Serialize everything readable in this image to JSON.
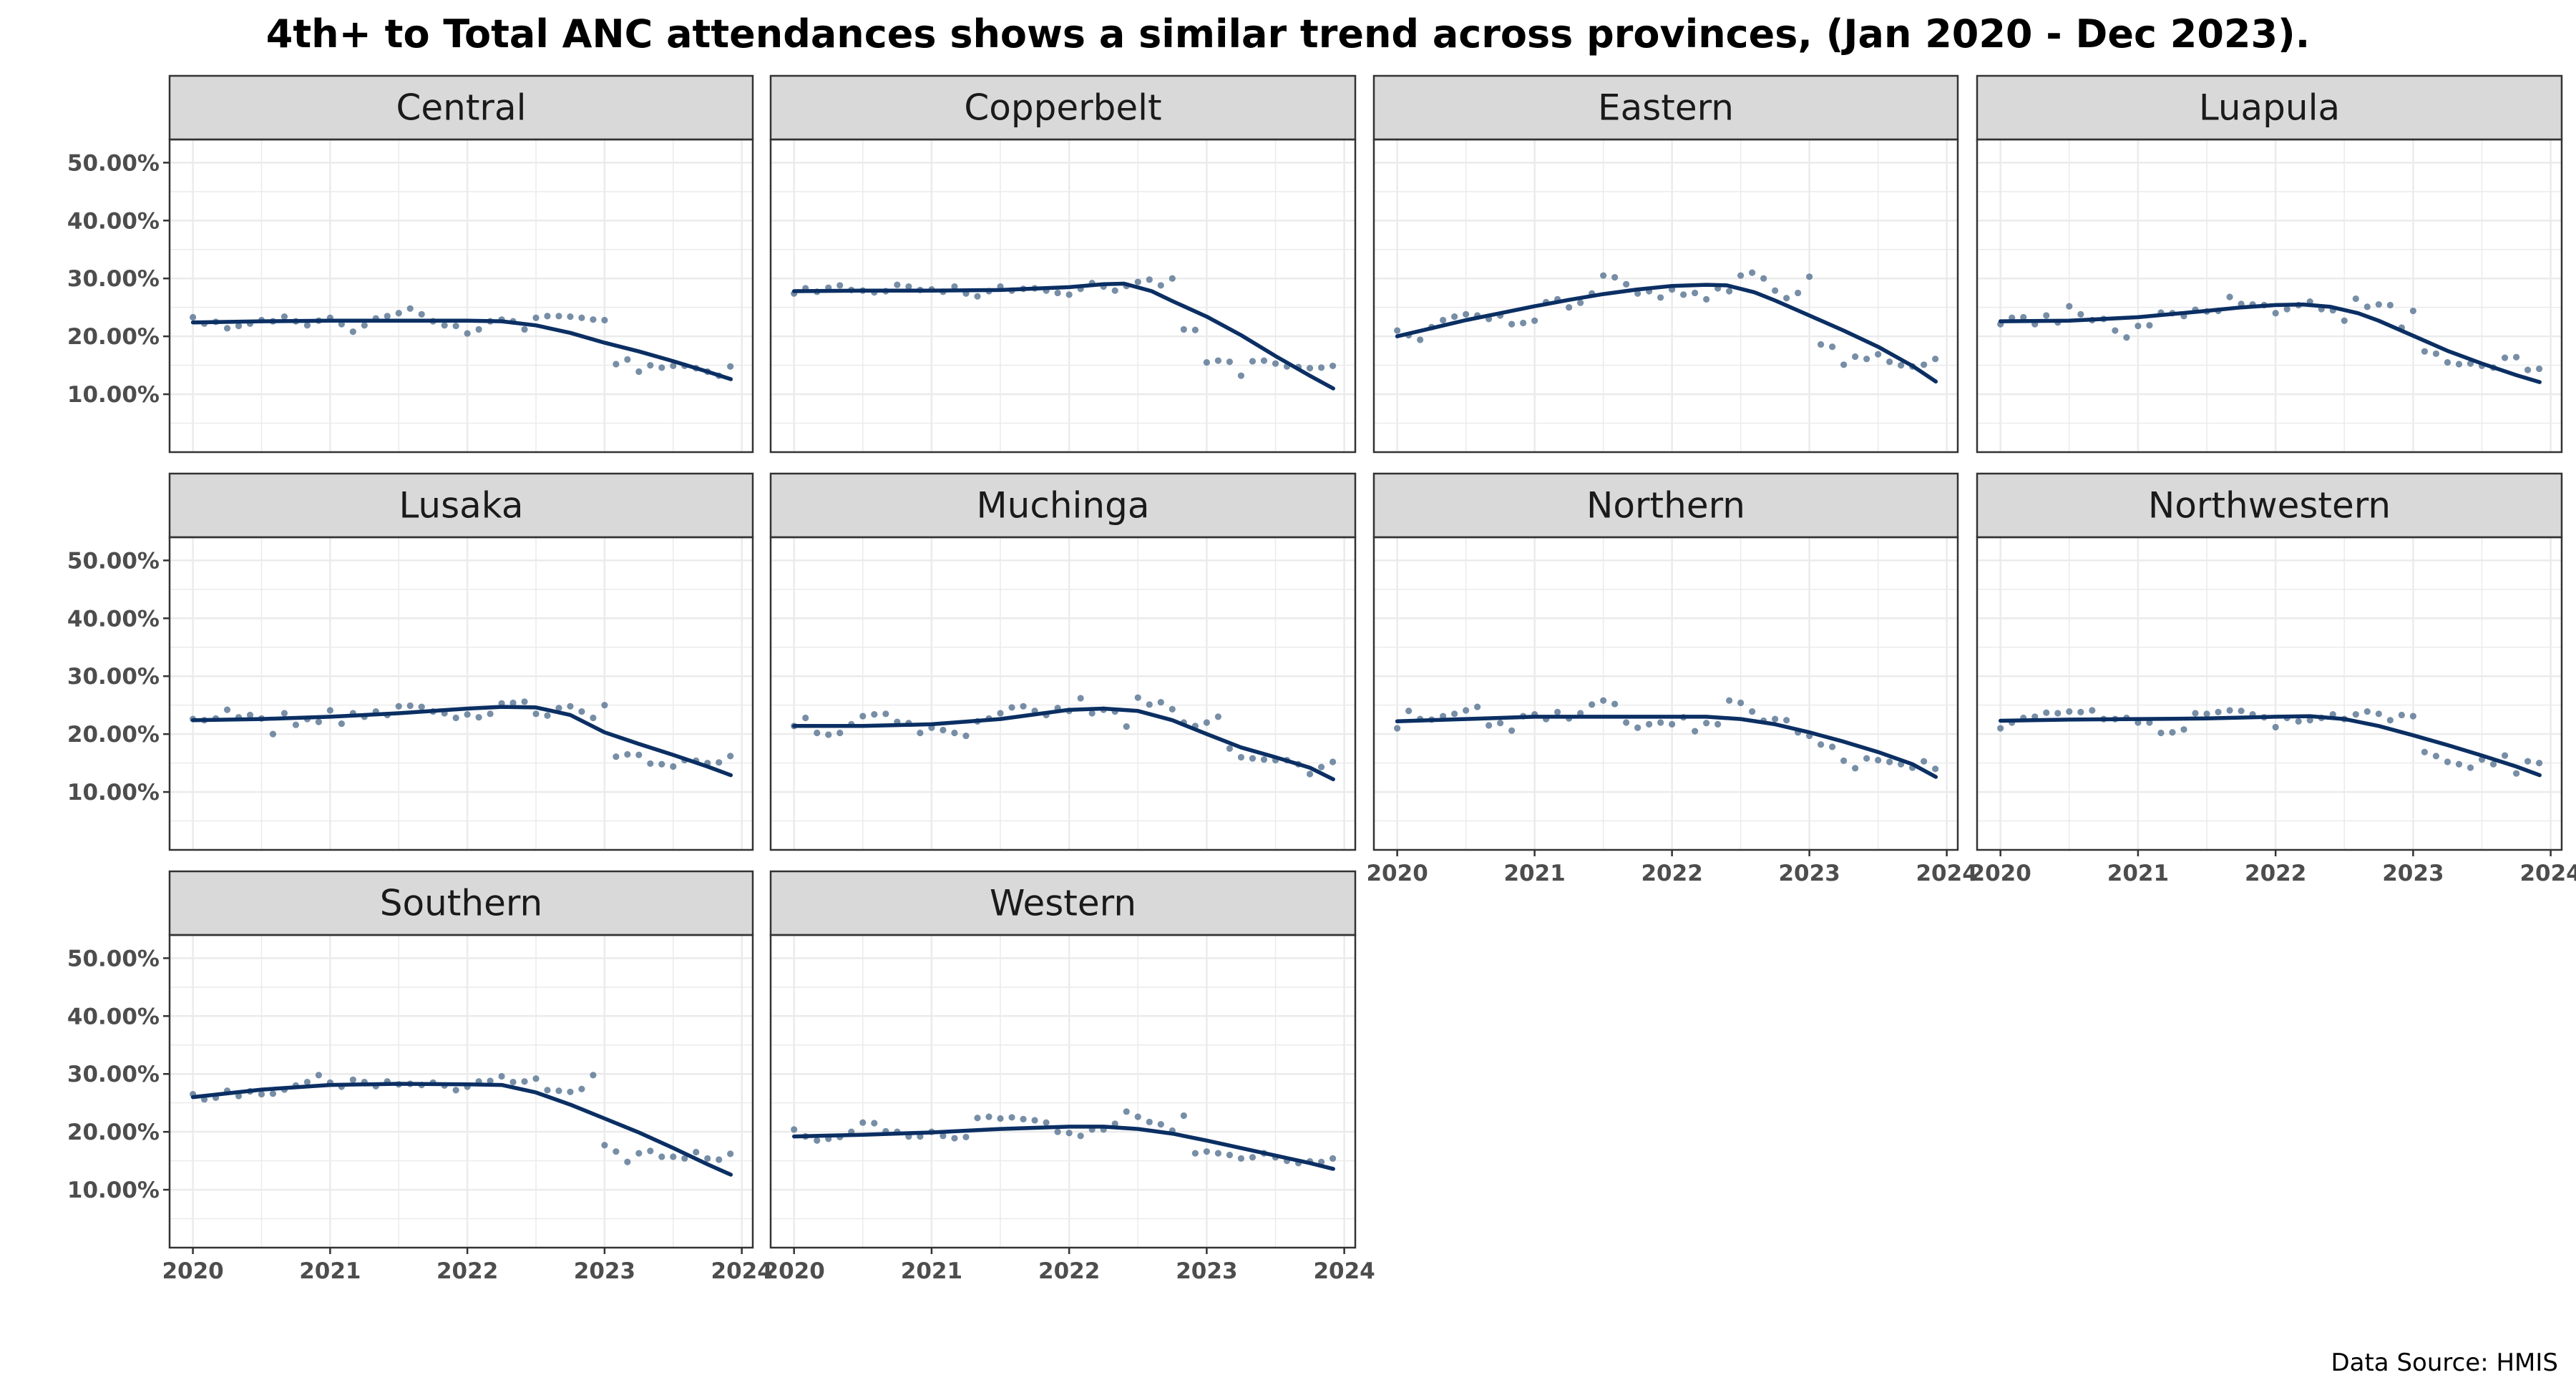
{
  "title": "4th+ to Total ANC attendances shows a similar trend across provinces, (Jan 2020 - Dec 2023).",
  "caption": "Data Source: HMIS",
  "colors": {
    "point": "#5f7a96",
    "line": "#0b2f63",
    "strip": "#d9d9d9",
    "grid": "#ebebeb",
    "border": "#333333"
  },
  "chart_data": {
    "type": "scatter",
    "facet_layout": {
      "ncol": 4,
      "nrow": 3
    },
    "x": {
      "type": "date",
      "ticks": [
        "2020",
        "2021",
        "2022",
        "2023",
        "2024"
      ],
      "range": [
        "2019-11",
        "2024-02"
      ]
    },
    "y": {
      "range": [
        0,
        0.54
      ],
      "ticks": [
        0.1,
        0.2,
        0.3,
        0.4,
        0.5
      ],
      "tick_labels": [
        "10.00%",
        "20.00%",
        "30.00%",
        "40.00%",
        "50.00%"
      ]
    },
    "series_style": {
      "points": "monthly values",
      "line": "smoothed trend"
    },
    "facets": [
      {
        "name": "Central",
        "points": [
          23.3,
          22.2,
          22.5,
          21.4,
          21.8,
          22.2,
          22.8,
          22.6,
          23.4,
          22.6,
          21.9,
          22.7,
          23.2,
          22.1,
          20.8,
          21.9,
          23.1,
          23.5,
          24.0,
          24.8,
          23.8,
          22.6,
          21.9,
          21.8,
          20.5,
          21.2,
          22.6,
          22.9,
          22.6,
          21.2,
          23.2,
          23.5,
          23.5,
          23.4,
          23.2,
          22.9,
          22.8,
          15.2,
          16.0,
          13.9,
          15.0,
          14.6,
          14.9,
          14.9,
          14.5,
          13.9,
          13.2,
          14.8
        ],
        "trend": [
          [
            2020.0,
            22.4
          ],
          [
            2020.5,
            22.6
          ],
          [
            2021.0,
            22.7
          ],
          [
            2021.5,
            22.7
          ],
          [
            2022.0,
            22.7
          ],
          [
            2022.25,
            22.6
          ],
          [
            2022.5,
            21.9
          ],
          [
            2022.75,
            20.6
          ],
          [
            2023.0,
            18.9
          ],
          [
            2023.25,
            17.4
          ],
          [
            2023.5,
            15.7
          ],
          [
            2023.75,
            13.9
          ],
          [
            2023.92,
            12.6
          ]
        ]
      },
      {
        "name": "Copperbelt",
        "points": [
          27.4,
          28.3,
          27.7,
          28.4,
          28.8,
          28.0,
          27.9,
          27.6,
          27.8,
          28.9,
          28.6,
          28.0,
          28.1,
          27.7,
          28.6,
          27.4,
          26.9,
          27.8,
          28.6,
          27.9,
          28.2,
          28.3,
          27.9,
          27.5,
          27.2,
          28.2,
          29.2,
          28.6,
          27.9,
          28.7,
          29.4,
          29.8,
          28.8,
          30.0,
          21.2,
          21.1,
          15.5,
          15.8,
          15.6,
          13.2,
          15.7,
          15.8,
          15.3,
          14.8,
          14.7,
          14.5,
          14.6,
          14.9
        ],
        "trend": [
          [
            2020.0,
            27.8
          ],
          [
            2020.5,
            27.9
          ],
          [
            2021.0,
            27.9
          ],
          [
            2021.5,
            28.0
          ],
          [
            2022.0,
            28.5
          ],
          [
            2022.25,
            29.0
          ],
          [
            2022.4,
            29.1
          ],
          [
            2022.6,
            27.8
          ],
          [
            2022.75,
            26.1
          ],
          [
            2023.0,
            23.4
          ],
          [
            2023.25,
            20.2
          ],
          [
            2023.5,
            16.6
          ],
          [
            2023.75,
            13.2
          ],
          [
            2023.92,
            11.0
          ]
        ]
      },
      {
        "name": "Eastern",
        "points": [
          21.0,
          20.2,
          19.4,
          21.6,
          22.8,
          23.4,
          23.8,
          23.6,
          23.0,
          23.6,
          22.1,
          22.3,
          22.7,
          25.9,
          26.4,
          25.0,
          25.8,
          27.4,
          30.5,
          30.2,
          29.0,
          27.4,
          27.8,
          26.7,
          28.1,
          27.2,
          27.5,
          26.4,
          28.3,
          27.8,
          30.5,
          31.0,
          30.0,
          27.9,
          26.6,
          27.5,
          30.3,
          18.6,
          18.2,
          15.1,
          16.5,
          16.1,
          16.9,
          15.6,
          15.0,
          14.8,
          15.1,
          16.1
        ],
        "trend": [
          [
            2020.0,
            20.0
          ],
          [
            2020.25,
            21.4
          ],
          [
            2020.5,
            22.8
          ],
          [
            2020.75,
            24.0
          ],
          [
            2021.0,
            25.2
          ],
          [
            2021.25,
            26.3
          ],
          [
            2021.5,
            27.3
          ],
          [
            2021.75,
            28.1
          ],
          [
            2022.0,
            28.7
          ],
          [
            2022.25,
            28.9
          ],
          [
            2022.4,
            28.8
          ],
          [
            2022.6,
            27.6
          ],
          [
            2022.75,
            26.2
          ],
          [
            2023.0,
            23.6
          ],
          [
            2023.25,
            21.0
          ],
          [
            2023.5,
            18.2
          ],
          [
            2023.75,
            14.9
          ],
          [
            2023.92,
            12.2
          ]
        ]
      },
      {
        "name": "Luapula",
        "points": [
          22.1,
          23.2,
          23.3,
          22.1,
          23.6,
          22.4,
          25.2,
          23.8,
          22.8,
          23.0,
          21.0,
          19.8,
          21.8,
          21.9,
          24.1,
          24.0,
          23.5,
          24.6,
          24.3,
          24.4,
          26.8,
          25.6,
          25.5,
          25.4,
          24.0,
          24.7,
          25.4,
          26.0,
          24.7,
          24.5,
          22.7,
          26.5,
          25.1,
          25.5,
          25.4,
          21.5,
          24.4,
          17.4,
          17.0,
          15.5,
          15.2,
          15.3,
          14.9,
          14.6,
          16.3,
          16.4,
          14.2,
          14.4
        ],
        "trend": [
          [
            2020.0,
            22.6
          ],
          [
            2020.5,
            22.7
          ],
          [
            2021.0,
            23.3
          ],
          [
            2021.5,
            24.4
          ],
          [
            2021.75,
            25.0
          ],
          [
            2022.0,
            25.4
          ],
          [
            2022.2,
            25.5
          ],
          [
            2022.4,
            25.1
          ],
          [
            2022.6,
            24.0
          ],
          [
            2022.75,
            22.7
          ],
          [
            2023.0,
            20.1
          ],
          [
            2023.25,
            17.5
          ],
          [
            2023.5,
            15.3
          ],
          [
            2023.75,
            13.3
          ],
          [
            2023.92,
            12.1
          ]
        ]
      },
      {
        "name": "Lusaka",
        "points": [
          22.6,
          22.4,
          22.7,
          24.2,
          22.9,
          23.3,
          22.7,
          20.0,
          23.6,
          21.6,
          22.6,
          22.1,
          24.1,
          21.8,
          23.6,
          23.0,
          23.9,
          23.3,
          24.8,
          24.9,
          24.7,
          23.9,
          23.6,
          22.8,
          23.4,
          22.9,
          23.5,
          25.3,
          25.4,
          25.6,
          23.5,
          23.2,
          24.5,
          24.8,
          23.9,
          22.8,
          25.0,
          16.1,
          16.5,
          16.4,
          14.9,
          14.8,
          14.4,
          15.5,
          15.4,
          15.0,
          15.1,
          16.2
        ],
        "trend": [
          [
            2020.0,
            22.4
          ],
          [
            2020.5,
            22.6
          ],
          [
            2021.0,
            23.0
          ],
          [
            2021.5,
            23.6
          ],
          [
            2022.0,
            24.4
          ],
          [
            2022.25,
            24.7
          ],
          [
            2022.5,
            24.6
          ],
          [
            2022.75,
            23.3
          ],
          [
            2023.0,
            20.3
          ],
          [
            2023.25,
            18.3
          ],
          [
            2023.5,
            16.4
          ],
          [
            2023.75,
            14.4
          ],
          [
            2023.92,
            12.9
          ]
        ]
      },
      {
        "name": "Muchinga",
        "points": [
          21.4,
          22.8,
          20.2,
          19.9,
          20.2,
          21.7,
          23.1,
          23.4,
          23.5,
          22.1,
          21.9,
          20.2,
          21.1,
          20.7,
          20.2,
          19.7,
          22.2,
          22.7,
          23.6,
          24.6,
          24.8,
          24.0,
          23.3,
          24.5,
          24.0,
          26.2,
          23.6,
          24.2,
          23.9,
          21.3,
          26.3,
          25.1,
          25.5,
          24.3,
          22.0,
          21.4,
          22.0,
          23.0,
          17.5,
          16.0,
          15.8,
          15.6,
          15.5,
          15.5,
          14.8,
          13.1,
          14.3,
          15.2
        ],
        "trend": [
          [
            2020.0,
            21.4
          ],
          [
            2020.5,
            21.4
          ],
          [
            2021.0,
            21.7
          ],
          [
            2021.5,
            22.6
          ],
          [
            2021.75,
            23.4
          ],
          [
            2022.0,
            24.2
          ],
          [
            2022.25,
            24.4
          ],
          [
            2022.5,
            24.0
          ],
          [
            2022.75,
            22.4
          ],
          [
            2023.0,
            20.0
          ],
          [
            2023.25,
            17.7
          ],
          [
            2023.5,
            16.0
          ],
          [
            2023.75,
            14.2
          ],
          [
            2023.92,
            12.2
          ]
        ]
      },
      {
        "name": "Northern",
        "points": [
          21.0,
          24.0,
          22.6,
          22.5,
          23.1,
          23.5,
          24.1,
          24.7,
          21.5,
          21.9,
          20.6,
          23.1,
          23.4,
          22.6,
          23.8,
          22.7,
          23.6,
          25.1,
          25.8,
          25.2,
          22.0,
          21.1,
          21.7,
          22.0,
          21.7,
          22.9,
          20.5,
          21.9,
          21.7,
          25.8,
          25.4,
          23.9,
          22.3,
          22.6,
          22.4,
          20.3,
          19.7,
          18.2,
          17.8,
          15.4,
          14.1,
          15.8,
          15.5,
          15.2,
          14.8,
          14.2,
          15.3,
          14.0
        ],
        "trend": [
          [
            2020.0,
            22.2
          ],
          [
            2020.5,
            22.6
          ],
          [
            2021.0,
            23.0
          ],
          [
            2021.5,
            23.0
          ],
          [
            2022.0,
            23.0
          ],
          [
            2022.25,
            23.0
          ],
          [
            2022.5,
            22.6
          ],
          [
            2022.75,
            21.7
          ],
          [
            2023.0,
            20.3
          ],
          [
            2023.25,
            18.7
          ],
          [
            2023.5,
            16.9
          ],
          [
            2023.75,
            14.8
          ],
          [
            2023.92,
            12.6
          ]
        ]
      },
      {
        "name": "Northwestern",
        "points": [
          21.0,
          22.0,
          22.8,
          23.0,
          23.7,
          23.6,
          23.9,
          23.8,
          24.1,
          22.6,
          22.6,
          22.8,
          22.0,
          22.0,
          20.2,
          20.3,
          20.8,
          23.6,
          23.5,
          23.8,
          24.1,
          24.0,
          23.4,
          22.9,
          21.2,
          22.8,
          22.2,
          22.4,
          22.8,
          23.4,
          22.6,
          23.4,
          23.9,
          23.5,
          22.4,
          23.3,
          23.1,
          16.9,
          16.2,
          15.2,
          14.8,
          14.2,
          15.6,
          14.8,
          16.3,
          13.2,
          15.3,
          15.0
        ],
        "trend": [
          [
            2020.0,
            22.3
          ],
          [
            2020.5,
            22.5
          ],
          [
            2021.0,
            22.6
          ],
          [
            2021.5,
            22.7
          ],
          [
            2022.0,
            23.0
          ],
          [
            2022.25,
            23.1
          ],
          [
            2022.5,
            22.6
          ],
          [
            2022.75,
            21.4
          ],
          [
            2023.0,
            19.8
          ],
          [
            2023.25,
            18.1
          ],
          [
            2023.5,
            16.3
          ],
          [
            2023.75,
            14.4
          ],
          [
            2023.92,
            12.9
          ]
        ]
      },
      {
        "name": "Southern",
        "points": [
          26.5,
          25.6,
          25.9,
          27.1,
          26.2,
          27.0,
          26.5,
          26.6,
          27.3,
          28.0,
          28.6,
          29.8,
          28.5,
          27.8,
          29.0,
          28.6,
          27.9,
          28.7,
          28.2,
          28.3,
          28.1,
          28.5,
          28.0,
          27.2,
          27.8,
          28.7,
          28.8,
          29.6,
          28.6,
          28.7,
          29.2,
          27.2,
          27.1,
          26.9,
          27.4,
          29.8,
          17.7,
          16.6,
          14.8,
          16.3,
          16.7,
          15.7,
          15.7,
          15.4,
          16.5,
          15.4,
          15.2,
          16.2
        ],
        "trend": [
          [
            2020.0,
            26.0
          ],
          [
            2020.5,
            27.3
          ],
          [
            2021.0,
            28.1
          ],
          [
            2021.5,
            28.3
          ],
          [
            2022.0,
            28.2
          ],
          [
            2022.25,
            28.1
          ],
          [
            2022.5,
            26.8
          ],
          [
            2022.75,
            24.7
          ],
          [
            2023.0,
            22.3
          ],
          [
            2023.25,
            19.9
          ],
          [
            2023.5,
            17.2
          ],
          [
            2023.75,
            14.4
          ],
          [
            2023.92,
            12.6
          ]
        ]
      },
      {
        "name": "Western",
        "points": [
          20.4,
          19.2,
          18.5,
          18.8,
          19.1,
          20.0,
          21.6,
          21.5,
          20.1,
          20.0,
          19.2,
          19.2,
          20.0,
          19.3,
          18.9,
          19.1,
          22.4,
          22.6,
          22.3,
          22.5,
          22.2,
          22.0,
          21.6,
          20.0,
          19.8,
          19.3,
          20.4,
          20.4,
          21.4,
          23.5,
          22.6,
          21.7,
          21.3,
          20.2,
          22.8,
          16.3,
          16.6,
          16.3,
          16.0,
          15.4,
          15.6,
          16.3,
          15.6,
          15.0,
          14.6,
          14.9,
          14.8,
          15.4
        ],
        "trend": [
          [
            2020.0,
            19.2
          ],
          [
            2020.5,
            19.5
          ],
          [
            2021.0,
            19.9
          ],
          [
            2021.5,
            20.5
          ],
          [
            2022.0,
            20.9
          ],
          [
            2022.25,
            20.9
          ],
          [
            2022.5,
            20.5
          ],
          [
            2022.75,
            19.7
          ],
          [
            2023.0,
            18.5
          ],
          [
            2023.25,
            17.2
          ],
          [
            2023.5,
            15.9
          ],
          [
            2023.75,
            14.6
          ],
          [
            2023.92,
            13.6
          ]
        ]
      }
    ]
  }
}
